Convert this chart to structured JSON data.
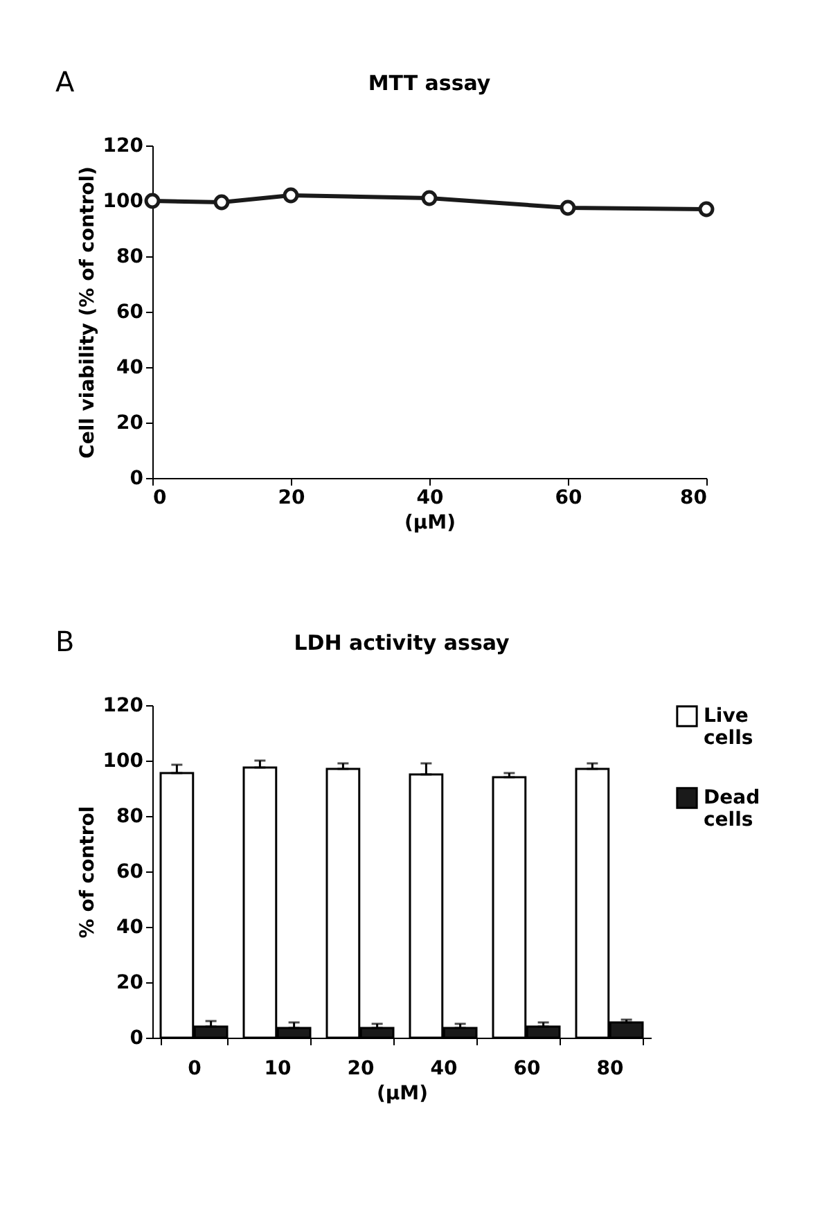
{
  "chart_data": [
    {
      "type": "line",
      "title": "MTT assay",
      "xlabel": "(μM)",
      "ylabel": "Cell viability (% of control)",
      "annotations": [
        "A"
      ],
      "x": [
        0,
        10,
        20,
        40,
        60,
        80
      ],
      "series": [
        {
          "color": "#1a1a1a",
          "values": [
            100,
            99.5,
            102,
            101,
            97.5,
            97
          ]
        }
      ],
      "xlim": [
        0,
        80
      ],
      "xticks": [
        0,
        20,
        40,
        60,
        80
      ],
      "ylim": [
        0,
        120
      ],
      "yticks": [
        0,
        20,
        40,
        60,
        80,
        100,
        120
      ],
      "grid": false,
      "marker": "circle",
      "line_style": "solid"
    },
    {
      "type": "bar",
      "title": "LDH activity assay",
      "xlabel": "(μM)",
      "ylabel": "% of control",
      "annotations": [
        "B"
      ],
      "categories": [
        "0",
        "10",
        "20",
        "40",
        "60",
        "80"
      ],
      "series": [
        {
          "name": "Live cells",
          "color": "#ffffff",
          "values": [
            95.5,
            97.5,
            97,
            95,
            94,
            97
          ],
          "errors": [
            3,
            2.5,
            2,
            4,
            1.5,
            2
          ]
        },
        {
          "name": "Dead cells",
          "color": "#1a1a1a",
          "values": [
            4,
            3.5,
            3.5,
            3.5,
            4,
            5.5
          ],
          "errors": [
            2,
            2,
            1.5,
            1.5,
            1.5,
            1
          ]
        }
      ],
      "ylim": [
        0,
        120
      ],
      "yticks": [
        0,
        20,
        40,
        60,
        80,
        100,
        120
      ],
      "grid": false,
      "legend": "right"
    }
  ]
}
